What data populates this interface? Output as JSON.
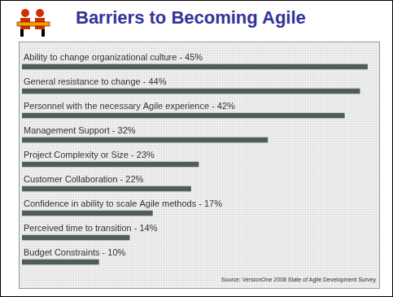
{
  "chart_data": {
    "type": "bar",
    "title": "Barriers to Becoming Agile",
    "orientation": "horizontal",
    "categories": [
      "Ability to change organizational culture - 45%",
      "General resistance to change - 44%",
      "Personnel with the necessary Agile experience - 42%",
      "Management Support - 32%",
      "Project Complexity or Size - 23%",
      "Customer Collaboration - 22%",
      "Confidence in ability to scale Agile methods - 17%",
      "Perceived time to transition - 14%",
      "Budget Constraints - 10%"
    ],
    "values": [
      45,
      44,
      42,
      32,
      23,
      22,
      17,
      14,
      10
    ],
    "color": "#4f5d58",
    "xlim": [
      0,
      46
    ],
    "grid": false,
    "tick_labels": false,
    "source": "Source: VersionOne 2008 State of Agile Development Survey"
  }
}
